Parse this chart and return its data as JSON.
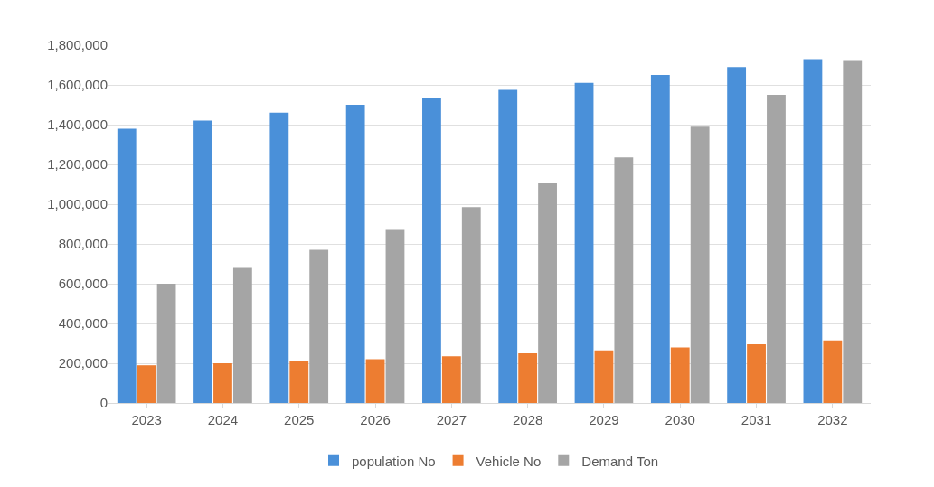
{
  "chart_data": {
    "type": "bar",
    "categories": [
      "2023",
      "2024",
      "2025",
      "2026",
      "2027",
      "2028",
      "2029",
      "2030",
      "2031",
      "2032"
    ],
    "series": [
      {
        "name": "population No",
        "color": "#4a90d9",
        "values": [
          1380000,
          1420000,
          1460000,
          1500000,
          1535000,
          1575000,
          1610000,
          1650000,
          1690000,
          1730000
        ]
      },
      {
        "name": "Vehicle No",
        "color": "#ed7d31",
        "values": [
          190000,
          200000,
          210000,
          220000,
          235000,
          250000,
          265000,
          280000,
          295000,
          315000
        ]
      },
      {
        "name": "Demand Ton",
        "color": "#a5a5a5",
        "values": [
          600000,
          680000,
          770000,
          870000,
          985000,
          1105000,
          1235000,
          1390000,
          1550000,
          1725000
        ]
      }
    ],
    "ylim": [
      0,
      1800000
    ],
    "yticks": [
      {
        "value": 0,
        "label": "0"
      },
      {
        "value": 200000,
        "label": "200,000"
      },
      {
        "value": 400000,
        "label": "400,000"
      },
      {
        "value": 600000,
        "label": "600,000"
      },
      {
        "value": 800000,
        "label": "800,000"
      },
      {
        "value": 1000000,
        "label": "1,000,000"
      },
      {
        "value": 1200000,
        "label": "1,200,000"
      },
      {
        "value": 1400000,
        "label": "1,400,000"
      },
      {
        "value": 1600000,
        "label": "1,600,000"
      },
      {
        "value": 1800000,
        "label": "1,800,000"
      }
    ],
    "grid": "y",
    "legend": "bottom"
  }
}
